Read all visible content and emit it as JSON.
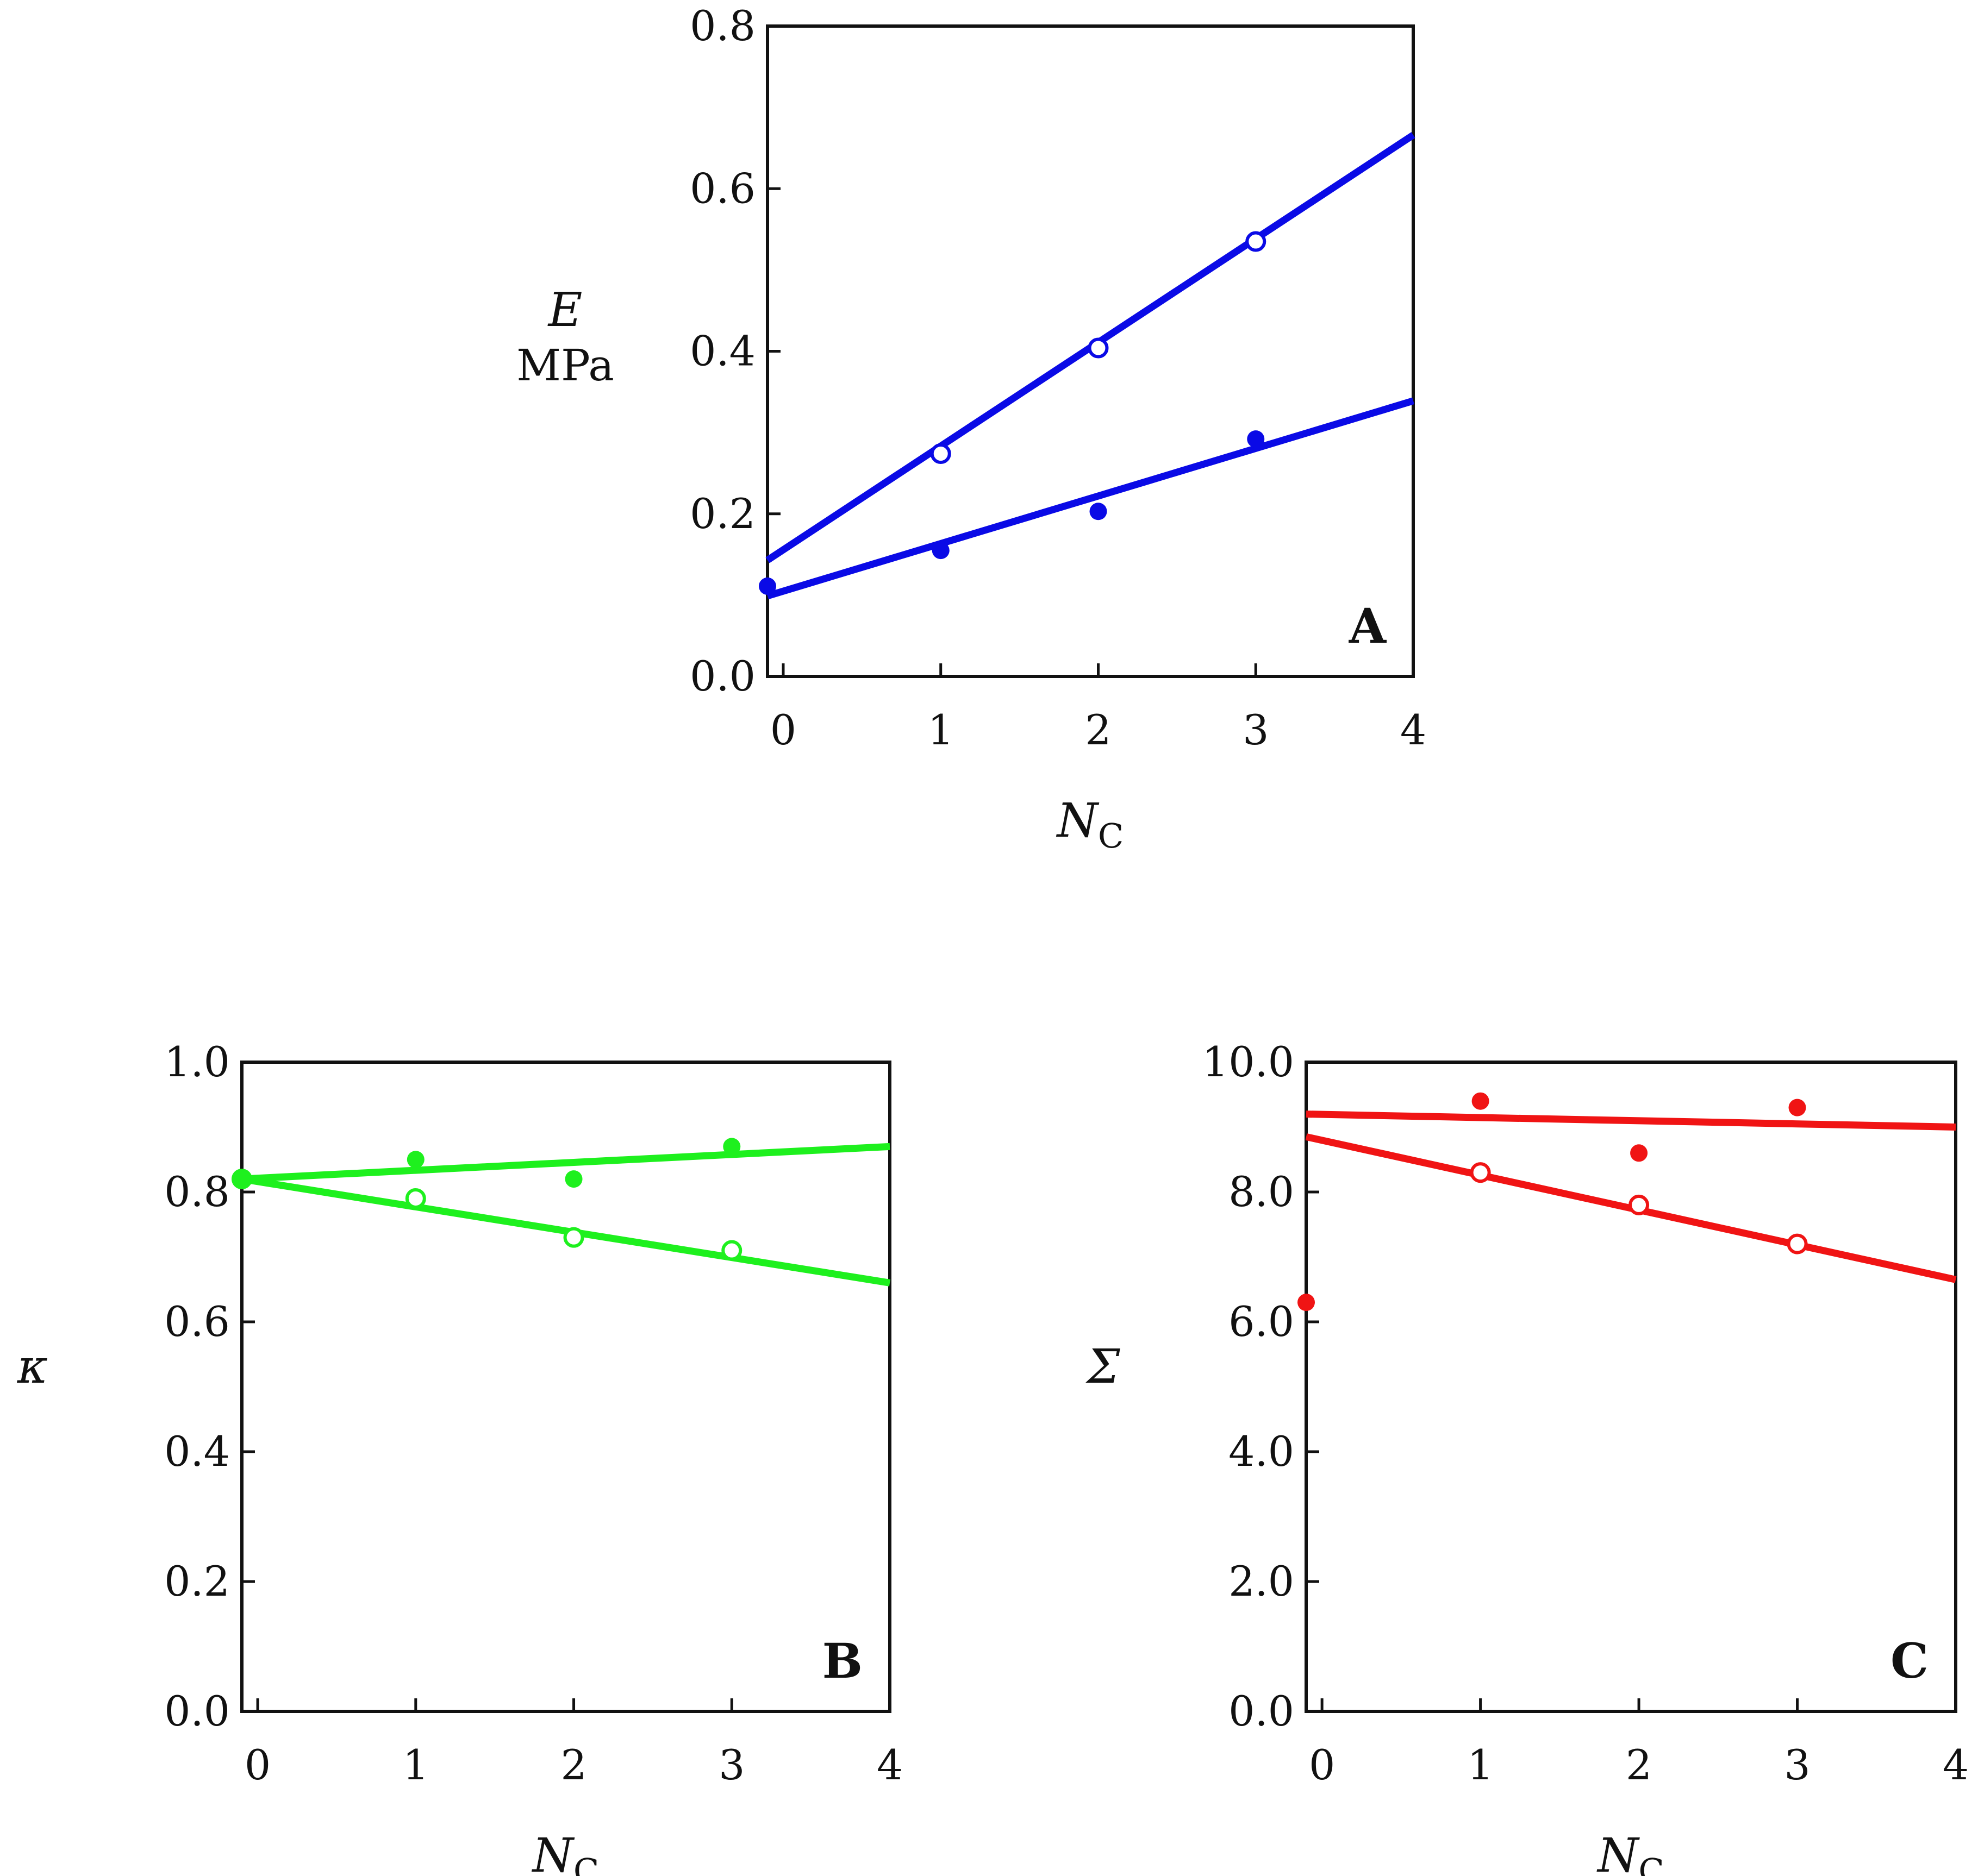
{
  "chart_data": [
    {
      "type": "scatter",
      "panel_label": "A",
      "ylabel": "E",
      "ylabel_unit": "MPa",
      "xlabel": "N",
      "xlabel_sub": "C",
      "xlim": [
        -0.1,
        4
      ],
      "ylim": [
        0,
        0.8
      ],
      "xticks": [
        0,
        1,
        2,
        3,
        4
      ],
      "xtick_labels": [
        "0",
        "1",
        "2",
        "3",
        "4"
      ],
      "yticks": [
        0,
        0.2,
        0.4,
        0.6,
        0.8
      ],
      "ytick_labels": [
        "0.0",
        "0.2",
        "0.4",
        "0.6",
        "0.8"
      ],
      "color": "#0a0ae6",
      "series": [
        {
          "marker": "open",
          "x": [
            1,
            2,
            3
          ],
          "y": [
            0.274,
            0.404,
            0.535
          ],
          "fit": {
            "x": [
              -0.1,
              4
            ],
            "y": [
              0.143,
              0.666
            ]
          }
        },
        {
          "marker": "filled",
          "x": [
            -0.1,
            1,
            2,
            3
          ],
          "y": [
            0.111,
            0.155,
            0.203,
            0.292
          ],
          "fit": {
            "x": [
              -0.1,
              4
            ],
            "y": [
              0.099,
              0.339
            ]
          }
        }
      ]
    },
    {
      "type": "scatter",
      "panel_label": "B",
      "ylabel": "κ",
      "xlabel": "N",
      "xlabel_sub": "C",
      "xlim": [
        -0.1,
        4
      ],
      "ylim": [
        0,
        1
      ],
      "xticks": [
        0,
        1,
        2,
        3,
        4
      ],
      "xtick_labels": [
        "0",
        "1",
        "2",
        "3",
        "4"
      ],
      "yticks": [
        0,
        0.2,
        0.4,
        0.6,
        0.8,
        1.0
      ],
      "ytick_labels": [
        "0.0",
        "0.2",
        "0.4",
        "0.6",
        "0.8",
        "1.0"
      ],
      "color": "#1ef01e",
      "series": [
        {
          "marker": "open",
          "x": [
            -0.1,
            1,
            2,
            3
          ],
          "y": [
            0.82,
            0.79,
            0.73,
            0.71
          ],
          "fit": {
            "x": [
              -0.1,
              4
            ],
            "y": [
              0.82,
              0.66
            ]
          }
        },
        {
          "marker": "filled",
          "x": [
            -0.1,
            1,
            2,
            3
          ],
          "y": [
            0.82,
            0.85,
            0.82,
            0.87
          ],
          "fit": {
            "x": [
              -0.1,
              4
            ],
            "y": [
              0.82,
              0.87
            ]
          }
        }
      ]
    },
    {
      "type": "scatter",
      "panel_label": "C",
      "ylabel": "Σ",
      "xlabel": "N",
      "xlabel_sub": "C",
      "xlim": [
        -0.1,
        4
      ],
      "ylim": [
        0,
        10
      ],
      "xticks": [
        0,
        1,
        2,
        3,
        4
      ],
      "xtick_labels": [
        "0",
        "1",
        "2",
        "3",
        "4"
      ],
      "yticks": [
        0,
        2,
        4,
        6,
        8,
        10
      ],
      "ytick_labels": [
        "0.0",
        "2.0",
        "4.0",
        "6.0",
        "8.0",
        "10.0"
      ],
      "color": "#f01414",
      "series": [
        {
          "marker": "open",
          "x": [
            1,
            2,
            3
          ],
          "y": [
            8.3,
            7.8,
            7.2
          ],
          "fit": {
            "x": [
              -0.1,
              4
            ],
            "y": [
              8.85,
              6.65
            ]
          }
        },
        {
          "marker": "filled",
          "x": [
            -0.1,
            1,
            2,
            3
          ],
          "y": [
            6.3,
            9.4,
            8.6,
            9.3
          ],
          "fit": {
            "x": [
              -0.1,
              4
            ],
            "y": [
              9.2,
              9.0
            ]
          }
        }
      ]
    }
  ]
}
